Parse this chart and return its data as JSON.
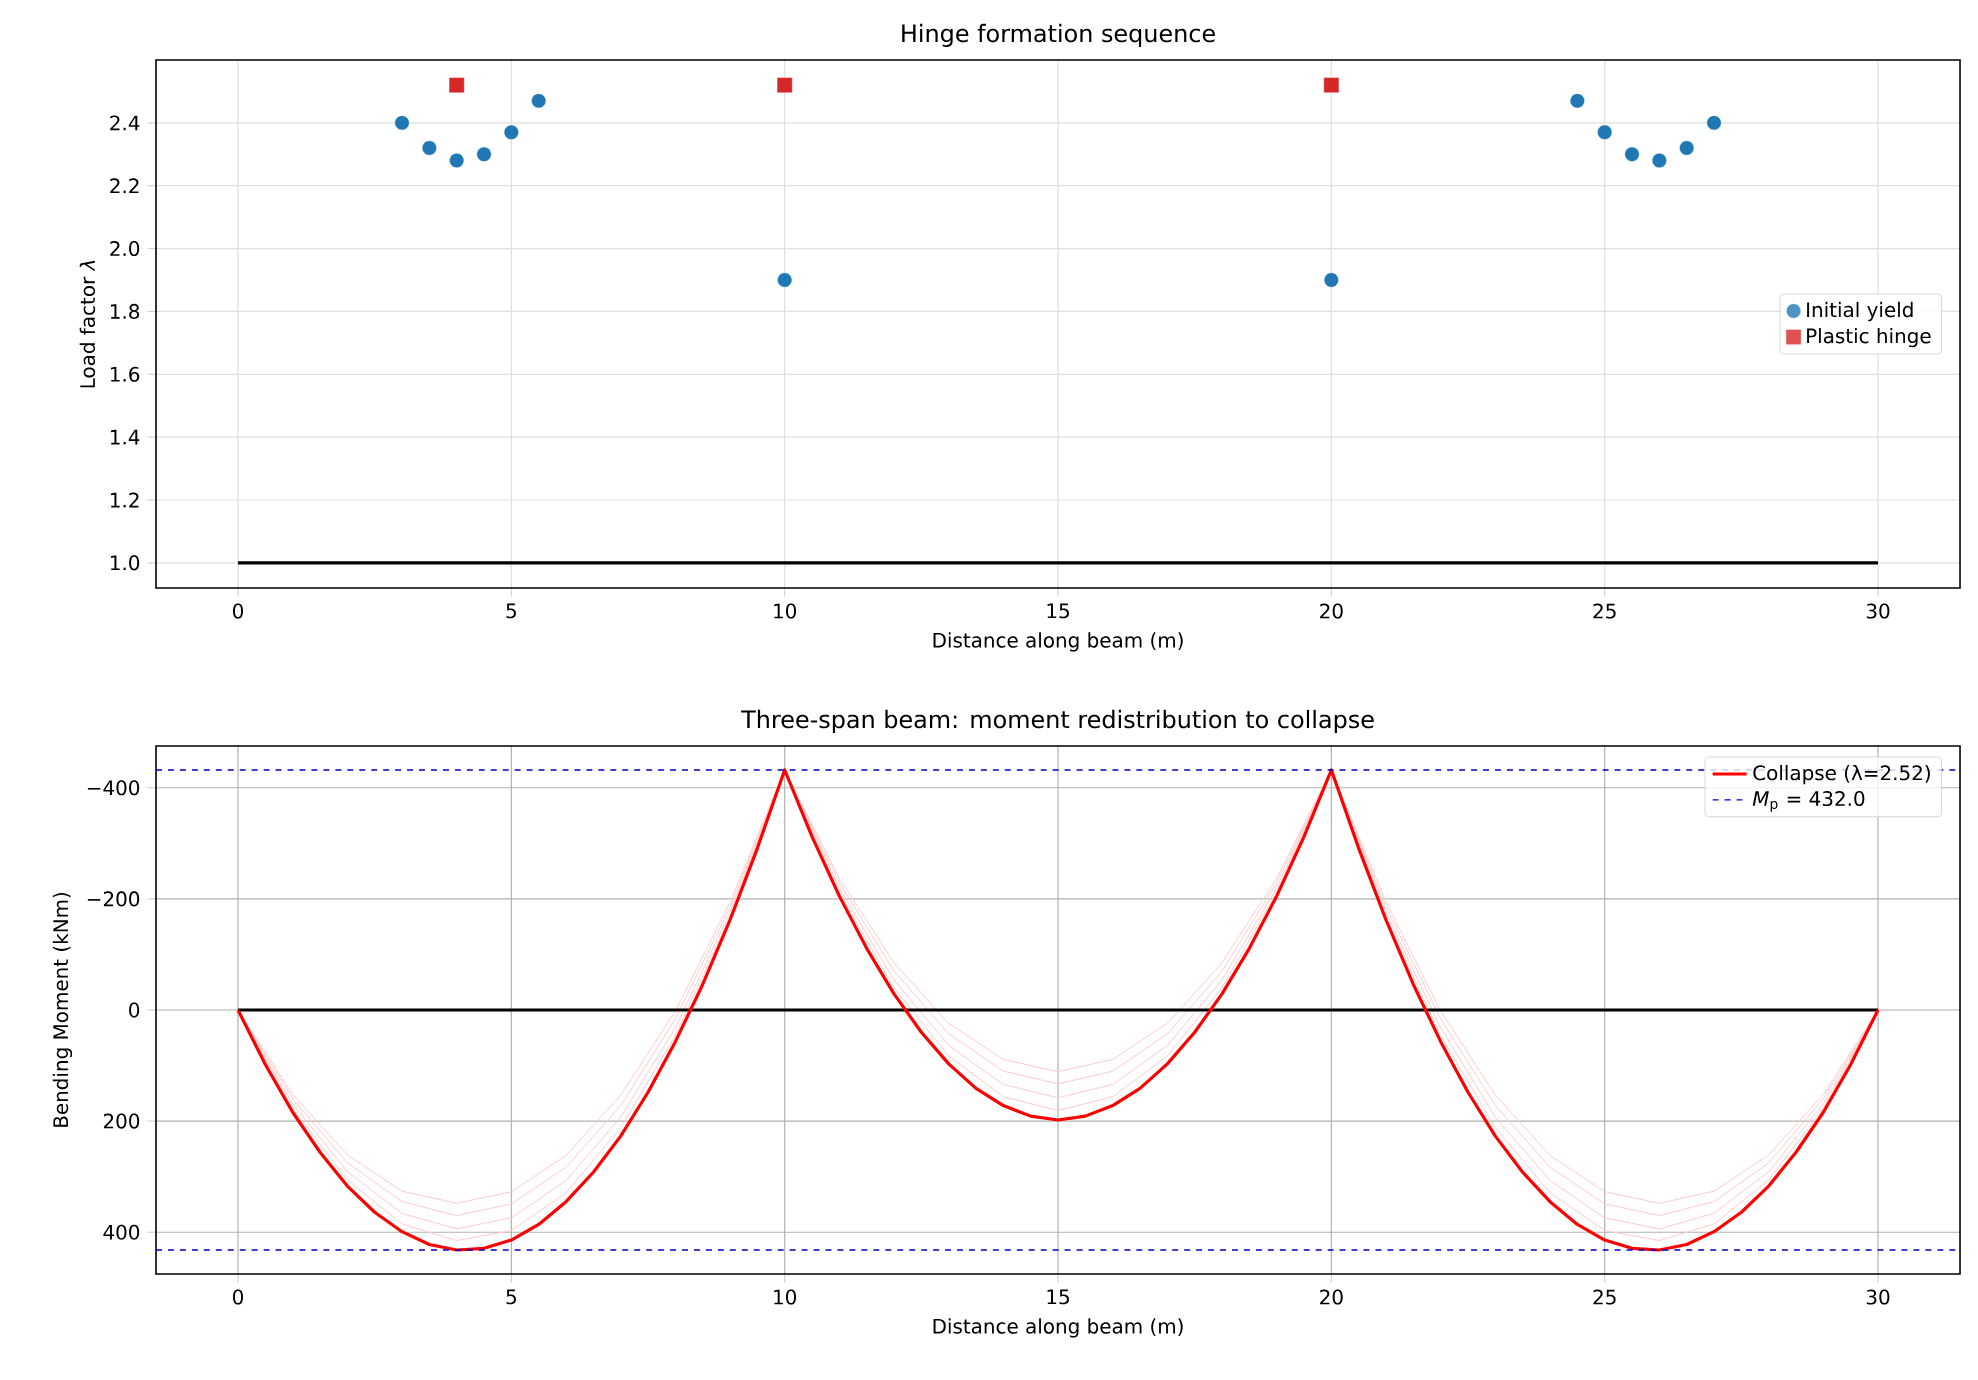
{
  "chart_data": [
    {
      "type": "scatter",
      "title": "Hinge formation sequence",
      "xlabel": "Distance along beam (m)",
      "ylabel": "Load factor *λ*",
      "xlim": [
        -1.5,
        31.5
      ],
      "ylim": [
        0.92,
        2.6
      ],
      "xticks": [
        0,
        5,
        10,
        15,
        20,
        25,
        30
      ],
      "yticks": [
        {
          "value": 1.0,
          "label": "1.0"
        },
        {
          "value": 1.2,
          "label": "1.2"
        },
        {
          "value": 1.4,
          "label": "1.4"
        },
        {
          "value": 1.6,
          "label": "1.6"
        },
        {
          "value": 1.8,
          "label": "1.8"
        },
        {
          "value": 2.0,
          "label": "2.0"
        },
        {
          "value": 2.2,
          "label": "2.2"
        },
        {
          "value": 2.4,
          "label": "2.4"
        }
      ],
      "grid": true,
      "legend": "right",
      "series": [
        {
          "type": "line",
          "color": "#000000",
          "x": [
            0,
            30
          ],
          "values": [
            1,
            1
          ]
        },
        {
          "name": "Initial yield",
          "type": "scatter",
          "marker": "circle",
          "color": "#1f77b4",
          "x": [
            3,
            3.5,
            4,
            4.5,
            5,
            5.5,
            10,
            20,
            24.5,
            25,
            25.5,
            26,
            26.5,
            27
          ],
          "values": [
            2.4,
            2.32,
            2.28,
            2.3,
            2.37,
            2.47,
            1.9,
            1.9,
            2.47,
            2.37,
            2.3,
            2.28,
            2.32,
            2.4
          ]
        },
        {
          "name": "Plastic hinge",
          "type": "scatter",
          "marker": "square",
          "color": "#d62728",
          "x": [
            4,
            10,
            20
          ],
          "values": [
            2.52,
            2.52,
            2.52
          ]
        }
      ]
    },
    {
      "type": "line",
      "title": "Three-span beam: moment redistribution to collapse",
      "xlabel": "Distance along beam (m)",
      "ylabel": "Bending Moment (kNm)",
      "xlim": [
        -1.5,
        31.5
      ],
      "ylim": [
        475.2,
        -475.2
      ],
      "xticks": [
        0,
        5,
        10,
        15,
        20,
        25,
        30
      ],
      "yticks": [
        {
          "value": -400,
          "label": "−400"
        },
        {
          "value": -200,
          "label": "−200"
        },
        0,
        200,
        400
      ],
      "grid": true,
      "legend": "top right",
      "ref_lines": [
        {
          "axis": "y",
          "value": 432,
          "label": "*M*$_{p}$ = 432.0",
          "color": "#0000cc",
          "line_style": "dashed"
        },
        {
          "axis": "y",
          "value": -432,
          "color": "#0000cc",
          "line_style": "dashed"
        }
      ],
      "series": [
        {
          "color": "#ffcccc",
          "x": [
            0,
            1,
            2,
            3,
            4,
            5,
            6,
            7,
            8,
            9,
            10,
            11,
            12,
            13,
            14,
            15,
            16,
            17,
            18,
            19,
            20,
            21,
            22,
            23,
            24,
            25,
            26,
            27,
            28,
            29,
            30
          ],
          "values": [
            0,
            152,
            261,
            326,
            348,
            327,
            262,
            153,
            2,
            -194,
            -432,
            -237,
            -85,
            24,
            89,
            111,
            89,
            24,
            -85,
            -237,
            -432,
            -194,
            2,
            153,
            262,
            327,
            348,
            326,
            261,
            152,
            0
          ]
        },
        {
          "color": "#ffcccc",
          "x": [
            0,
            1,
            2,
            3,
            4,
            5,
            6,
            7,
            8,
            9,
            10,
            11,
            12,
            13,
            14,
            15,
            16,
            17,
            18,
            19,
            20,
            21,
            22,
            23,
            24,
            25,
            26,
            27,
            28,
            29,
            30
          ],
          "values": [
            0,
            160,
            275,
            345,
            370,
            349,
            283,
            172,
            16,
            -185,
            -432,
            -229,
            -70,
            43,
            110,
            133,
            110,
            43,
            -70,
            -229,
            -432,
            -185,
            16,
            172,
            283,
            349,
            370,
            345,
            275,
            160,
            0
          ]
        },
        {
          "color": "#ffcccc",
          "x": [
            0,
            1,
            2,
            3,
            4,
            5,
            6,
            7,
            8,
            9,
            10,
            11,
            12,
            13,
            14,
            15,
            16,
            17,
            18,
            19,
            20,
            21,
            22,
            23,
            24,
            25,
            26,
            27,
            28,
            29,
            30
          ],
          "values": [
            0,
            169,
            291,
            366,
            394,
            374,
            307,
            193,
            32,
            -176,
            -432,
            -220,
            -54,
            64,
            134,
            158,
            134,
            64,
            -54,
            -220,
            -432,
            -176,
            32,
            193,
            307,
            374,
            394,
            366,
            291,
            169,
            0
          ]
        },
        {
          "color": "#ffcccc",
          "x": [
            0,
            1,
            2,
            3,
            4,
            5,
            6,
            7,
            8,
            9,
            10,
            11,
            12,
            13,
            14,
            15,
            16,
            17,
            18,
            19,
            20,
            21,
            22,
            23,
            24,
            25,
            26,
            27,
            28,
            29,
            30
          ],
          "values": [
            0,
            177,
            306,
            385,
            415,
            397,
            329,
            212,
            46,
            -168,
            -432,
            -212,
            -40,
            83,
            156,
            181,
            156,
            83,
            -40,
            -212,
            -432,
            -168,
            46,
            212,
            329,
            397,
            415,
            385,
            306,
            177,
            0
          ]
        },
        {
          "color": "#000000",
          "x": [
            0,
            30
          ],
          "values": [
            0,
            0
          ]
        },
        {
          "name": "Collapse (λ=2.52)",
          "color": "#ff0000",
          "x": [
            0,
            0.5,
            1,
            1.5,
            2,
            2.5,
            3,
            3.5,
            4,
            4.5,
            5,
            5.5,
            6,
            6.5,
            7,
            7.5,
            8,
            8.5,
            9,
            9.5,
            10,
            10.5,
            11,
            11.5,
            12,
            12.5,
            13,
            13.5,
            14,
            14.5,
            15,
            15.5,
            16,
            16.5,
            17,
            17.5,
            18,
            18.5,
            19,
            19.5,
            20,
            20.5,
            21,
            21.5,
            22,
            22.5,
            23,
            23.5,
            24,
            24.5,
            25,
            25.5,
            26,
            26.5,
            27,
            27.5,
            28,
            28.5,
            29,
            29.5,
            30
          ],
          "values": [
            0,
            98,
            184,
            256,
            317,
            364,
            399,
            422,
            432,
            429,
            414,
            386,
            345,
            292,
            227,
            148,
            57,
            -46,
            -162,
            -291,
            -432,
            -312,
            -205,
            -111,
            -29,
            40,
            97,
            141,
            172,
            191,
            198,
            191,
            172,
            141,
            97,
            40,
            -29,
            -111,
            -205,
            -312,
            -432,
            -291,
            -162,
            -46,
            57,
            148,
            227,
            292,
            345,
            386,
            414,
            429,
            432,
            422,
            399,
            364,
            317,
            256,
            184,
            98,
            0
          ]
        }
      ]
    }
  ]
}
